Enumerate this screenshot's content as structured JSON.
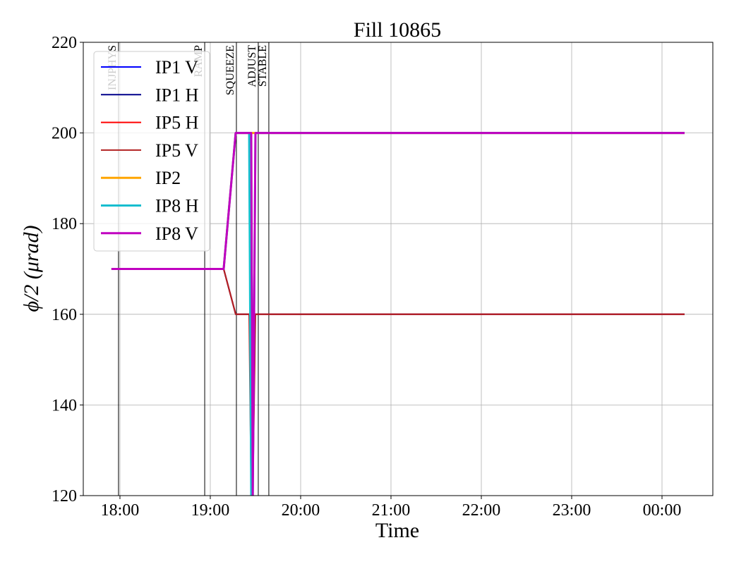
{
  "chart_data": {
    "type": "line",
    "title": "Fill 10865",
    "x_label": "Time",
    "y_label": "ϕ/2 (μrad)",
    "x": [
      17.906,
      19.148,
      19.281,
      19.43,
      19.453,
      19.47,
      19.5,
      24.25
    ],
    "series": [
      {
        "name": "IP1 V",
        "color": "#0000ff",
        "width": 2,
        "values": [
          170,
          170,
          160,
          160,
          160,
          160,
          160,
          160
        ]
      },
      {
        "name": "IP1 H",
        "color": "#00008b",
        "width": 2,
        "values": [
          170,
          170,
          160,
          160,
          160,
          160,
          160,
          160
        ]
      },
      {
        "name": "IP5 H",
        "color": "#ff0000",
        "width": 2,
        "values": [
          170,
          170,
          160,
          160,
          160,
          160,
          160,
          160
        ]
      },
      {
        "name": "IP5 V",
        "color": "#b22222",
        "width": 2,
        "values": [
          170,
          170,
          160,
          160,
          120,
          120,
          160,
          160
        ]
      },
      {
        "name": "IP2",
        "color": "#ffa500",
        "width": 3,
        "values": [
          170,
          170,
          200,
          200,
          200,
          200,
          200,
          200
        ]
      },
      {
        "name": "IP8 H",
        "color": "#17becf",
        "width": 3,
        "values": [
          170,
          170,
          200,
          200,
          120,
          120,
          200,
          200
        ]
      },
      {
        "name": "IP8 V",
        "color": "#c000c0",
        "width": 3,
        "values": [
          170,
          170,
          200,
          200,
          200,
          120,
          200,
          200
        ]
      }
    ],
    "events": [
      {
        "label": "INJPHYS",
        "x": 17.984
      },
      {
        "label": "RAMP",
        "x": 18.938
      },
      {
        "label": "SQUEEZE",
        "x": 19.289
      },
      {
        "label": "ADJUST",
        "x": 19.531
      },
      {
        "label": "STABLE",
        "x": 19.648
      }
    ],
    "xlim": [
      17.594,
      24.5625
    ],
    "xticks": [
      {
        "value": 18,
        "label": "18:00"
      },
      {
        "value": 19,
        "label": "19:00"
      },
      {
        "value": 20,
        "label": "20:00"
      },
      {
        "value": 21,
        "label": "21:00"
      },
      {
        "value": 22,
        "label": "22:00"
      },
      {
        "value": 23,
        "label": "23:00"
      },
      {
        "value": 24,
        "label": "00:00"
      }
    ],
    "ylim": [
      120,
      220
    ],
    "yticks": [
      120,
      140,
      160,
      180,
      200,
      220
    ],
    "grid": true,
    "legend": "upper left"
  }
}
